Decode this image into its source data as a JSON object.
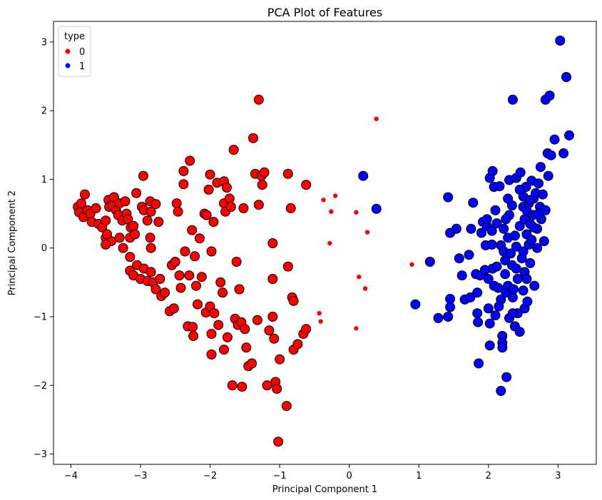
{
  "chart_data": {
    "type": "scatter",
    "title": "PCA Plot of Features",
    "xlabel": "Principal Component 1",
    "ylabel": "Principal Component 2",
    "xlim": [
      -4.25,
      3.55
    ],
    "ylim": [
      -3.15,
      3.3
    ],
    "xticks": [
      -4,
      -3,
      -2,
      -1,
      0,
      1,
      2,
      3
    ],
    "yticks": [
      -3,
      -2,
      -1,
      0,
      1,
      2,
      3
    ],
    "grid": false,
    "legend": {
      "title": "type",
      "placement": "top-left",
      "entries": [
        {
          "label": "0",
          "color": "#ff0000"
        },
        {
          "label": "1",
          "color": "#0000ff"
        }
      ]
    },
    "series": [
      {
        "label": "0",
        "color": "#ff0000",
        "marker": "large",
        "points": [
          [
            -3.9,
            0.6
          ],
          [
            -3.85,
            0.65
          ],
          [
            -3.8,
            0.78
          ],
          [
            -3.88,
            0.52
          ],
          [
            -3.82,
            0.45
          ],
          [
            -3.76,
            0.55
          ],
          [
            -3.72,
            0.5
          ],
          [
            -3.7,
            0.38
          ],
          [
            -3.64,
            0.58
          ],
          [
            -3.6,
            0.35
          ],
          [
            -3.55,
            0.3
          ],
          [
            -3.5,
            0.4
          ],
          [
            -3.46,
            0.7
          ],
          [
            -3.45,
            0.6
          ],
          [
            -3.4,
            0.62
          ],
          [
            -3.38,
            0.74
          ],
          [
            -3.35,
            0.55
          ],
          [
            -3.32,
            0.48
          ],
          [
            -3.3,
            0.65
          ],
          [
            -3.26,
            0.4
          ],
          [
            -3.22,
            0.68
          ],
          [
            -3.2,
            0.5
          ],
          [
            -3.18,
            0.42
          ],
          [
            -3.14,
            0.3
          ],
          [
            -3.1,
            0.32
          ],
          [
            -3.06,
            0.8
          ],
          [
            -3.5,
            0.15
          ],
          [
            -3.42,
            0.1
          ],
          [
            -3.3,
            0.15
          ],
          [
            -3.25,
            0.0
          ],
          [
            -3.5,
            0.05
          ],
          [
            -3.48,
            0.2
          ],
          [
            -3.15,
            0.15
          ],
          [
            -3.08,
            0.2
          ],
          [
            -2.98,
            0.6
          ],
          [
            -2.96,
            1.05
          ],
          [
            -2.95,
            0.55
          ],
          [
            -2.9,
            0.4
          ],
          [
            -2.86,
            0.68
          ],
          [
            -2.85,
            0.53
          ],
          [
            -2.78,
            0.64
          ],
          [
            -2.74,
            0.38
          ],
          [
            -2.86,
            0.15
          ],
          [
            -2.85,
            0.0
          ],
          [
            -3.15,
            -0.13
          ],
          [
            -3.15,
            -0.33
          ],
          [
            -3.05,
            -0.25
          ],
          [
            -3.1,
            -0.4
          ],
          [
            -3.0,
            -0.45
          ],
          [
            -2.95,
            -0.3
          ],
          [
            -2.9,
            -0.48
          ],
          [
            -2.85,
            -0.35
          ],
          [
            -2.82,
            -0.5
          ],
          [
            -2.78,
            -0.6
          ],
          [
            -2.72,
            -0.45
          ],
          [
            -2.7,
            -0.7
          ],
          [
            -2.65,
            -0.65
          ],
          [
            -2.58,
            -0.92
          ],
          [
            -2.52,
            -0.88
          ],
          [
            -2.55,
            -0.25
          ],
          [
            -2.5,
            -0.2
          ],
          [
            -2.48,
            0.65
          ],
          [
            -2.46,
            0.53
          ],
          [
            -2.44,
            -0.4
          ],
          [
            -2.42,
            -0.58
          ],
          [
            -2.38,
            1.12
          ],
          [
            -2.38,
            0.93
          ],
          [
            -2.36,
            -0.05
          ],
          [
            -2.32,
            -1.14
          ],
          [
            -2.3,
            -0.4
          ],
          [
            -2.29,
            1.27
          ],
          [
            -2.26,
            0.26
          ],
          [
            -2.25,
            -1.15
          ],
          [
            -2.24,
            -1.28
          ],
          [
            -2.22,
            -0.12
          ],
          [
            -2.2,
            -0.55
          ],
          [
            -2.18,
            -0.82
          ],
          [
            -2.15,
            0.14
          ],
          [
            -2.12,
            -0.42
          ],
          [
            -2.08,
            0.5
          ],
          [
            -2.06,
            -0.94
          ],
          [
            -2.05,
            0.48
          ],
          [
            -2.02,
            0.85
          ],
          [
            -2.0,
            1.07
          ],
          [
            -2.0,
            -0.85
          ],
          [
            -1.98,
            -0.05
          ],
          [
            -1.98,
            -1.25
          ],
          [
            -1.98,
            -1.55
          ],
          [
            -1.95,
            0.38
          ],
          [
            -1.94,
            -0.95
          ],
          [
            -1.9,
            0.95
          ],
          [
            -1.88,
            -1.12
          ],
          [
            -1.85,
            -0.5
          ],
          [
            -1.82,
            -0.65
          ],
          [
            -1.8,
            0.65
          ],
          [
            -1.8,
            0.97
          ],
          [
            -1.8,
            -1.48
          ],
          [
            -1.78,
            0.53
          ],
          [
            -1.76,
            0.88
          ],
          [
            -1.75,
            -1.3
          ],
          [
            -1.72,
            0.72
          ],
          [
            -1.7,
            0.6
          ],
          [
            -1.68,
            -2.0
          ],
          [
            -1.66,
            1.43
          ],
          [
            -1.64,
            -1.03
          ],
          [
            -1.62,
            -0.2
          ],
          [
            -1.6,
            -1.12
          ],
          [
            -1.58,
            -0.6
          ],
          [
            -1.55,
            -1.08
          ],
          [
            -1.54,
            -2.02
          ],
          [
            -1.52,
            0.58
          ],
          [
            -1.5,
            -1.18
          ],
          [
            -1.48,
            -1.45
          ],
          [
            -1.45,
            -1.72
          ],
          [
            -1.4,
            -1.68
          ],
          [
            -1.38,
            1.6
          ],
          [
            -1.35,
            1.08
          ],
          [
            -1.32,
            -1.05
          ],
          [
            -1.3,
            2.16
          ],
          [
            -1.3,
            0.63
          ],
          [
            -1.26,
            1.05
          ],
          [
            -1.25,
            0.92
          ],
          [
            -1.22,
            1.1
          ],
          [
            -1.18,
            -2.0
          ],
          [
            -1.15,
            -1.2
          ],
          [
            -1.1,
            -0.45
          ],
          [
            -1.1,
            0.07
          ],
          [
            -1.1,
            -1.0
          ],
          [
            -1.08,
            -1.32
          ],
          [
            -1.06,
            -1.95
          ],
          [
            -1.04,
            -2.05
          ],
          [
            -1.02,
            -2.82
          ],
          [
            -1.0,
            -1.62
          ],
          [
            -0.9,
            -2.3
          ],
          [
            -0.88,
            -0.27
          ],
          [
            -0.88,
            1.08
          ],
          [
            -0.84,
            0.58
          ],
          [
            -0.82,
            -0.72
          ],
          [
            -0.8,
            -0.77
          ],
          [
            -0.8,
            -1.48
          ],
          [
            -0.74,
            -1.4
          ],
          [
            -0.66,
            -1.25
          ],
          [
            -0.62,
            -1.18
          ],
          [
            -0.62,
            0.92
          ]
        ]
      },
      {
        "label": "0",
        "color": "#ff0000",
        "marker": "small",
        "points": [
          [
            0.39,
            1.88
          ],
          [
            -0.2,
            0.76
          ],
          [
            -0.37,
            0.7
          ],
          [
            -0.26,
            0.53
          ],
          [
            0.1,
            0.52
          ],
          [
            0.26,
            0.23
          ],
          [
            -0.28,
            0.07
          ],
          [
            0.9,
            -0.24
          ],
          [
            0.14,
            -0.42
          ],
          [
            0.23,
            -0.59
          ],
          [
            -0.43,
            -0.95
          ],
          [
            -0.41,
            -1.07
          ],
          [
            0.1,
            -1.17
          ]
        ]
      },
      {
        "label": "1",
        "color": "#0000ff",
        "marker": "large",
        "points": [
          [
            0.2,
            1.05
          ],
          [
            0.39,
            0.57
          ],
          [
            0.95,
            -0.82
          ],
          [
            1.16,
            -0.2
          ],
          [
            1.28,
            -1.02
          ],
          [
            1.42,
            -1.0
          ],
          [
            1.42,
            0.74
          ],
          [
            1.45,
            -0.74
          ],
          [
            1.45,
            -0.86
          ],
          [
            1.45,
            0.22
          ],
          [
            1.54,
            0.28
          ],
          [
            1.58,
            -0.15
          ],
          [
            1.62,
            -0.4
          ],
          [
            1.66,
            -0.75
          ],
          [
            1.72,
            -0.1
          ],
          [
            1.74,
            -0.72
          ],
          [
            1.75,
            0.28
          ],
          [
            1.78,
            0.66
          ],
          [
            1.82,
            -0.38
          ],
          [
            1.84,
            -0.65
          ],
          [
            1.84,
            -0.95
          ],
          [
            1.85,
            -1.08
          ],
          [
            1.86,
            -1.68
          ],
          [
            1.88,
            -0.4
          ],
          [
            1.9,
            0.22
          ],
          [
            1.92,
            0.38
          ],
          [
            1.95,
            -0.32
          ],
          [
            1.96,
            0.04
          ],
          [
            1.98,
            0.32
          ],
          [
            2.0,
            -0.45
          ],
          [
            2.0,
            -0.88
          ],
          [
            2.02,
            -1.1
          ],
          [
            2.02,
            -1.42
          ],
          [
            2.02,
            1.02
          ],
          [
            2.05,
            0.25
          ],
          [
            2.06,
            -0.3
          ],
          [
            2.06,
            1.12
          ],
          [
            2.08,
            0.89
          ],
          [
            2.08,
            -0.55
          ],
          [
            2.1,
            -0.98
          ],
          [
            2.12,
            0.36
          ],
          [
            2.12,
            -0.27
          ],
          [
            2.14,
            -0.58
          ],
          [
            2.16,
            0.9
          ],
          [
            2.18,
            -2.08
          ],
          [
            2.18,
            0.04
          ],
          [
            2.18,
            -0.75
          ],
          [
            2.2,
            -1.28
          ],
          [
            2.2,
            -1.38
          ],
          [
            2.2,
            -1.45
          ],
          [
            2.22,
            0.28
          ],
          [
            2.22,
            -0.05
          ],
          [
            2.24,
            -0.18
          ],
          [
            2.24,
            -0.38
          ],
          [
            2.25,
            -0.65
          ],
          [
            2.26,
            -1.88
          ],
          [
            2.28,
            0.15
          ],
          [
            2.28,
            -0.55
          ],
          [
            2.3,
            0.99
          ],
          [
            2.3,
            0.48
          ],
          [
            2.3,
            -1.02
          ],
          [
            2.32,
            -0.08
          ],
          [
            2.34,
            0.62
          ],
          [
            2.34,
            -0.25
          ],
          [
            2.35,
            -0.72
          ],
          [
            2.35,
            2.16
          ],
          [
            2.36,
            -0.6
          ],
          [
            2.38,
            0.18
          ],
          [
            2.38,
            -1.14
          ],
          [
            2.4,
            1.02
          ],
          [
            2.4,
            0.02
          ],
          [
            2.42,
            -0.45
          ],
          [
            2.42,
            -0.95
          ],
          [
            2.45,
            0.32
          ],
          [
            2.45,
            -1.22
          ],
          [
            2.46,
            1.1
          ],
          [
            2.48,
            -0.15
          ],
          [
            2.5,
            0.6
          ],
          [
            2.5,
            0.75
          ],
          [
            2.5,
            -0.05
          ],
          [
            2.5,
            -0.62
          ],
          [
            2.52,
            0.42
          ],
          [
            2.52,
            -0.35
          ],
          [
            2.52,
            -0.88
          ],
          [
            2.54,
            0.89
          ],
          [
            2.55,
            0.2
          ],
          [
            2.55,
            0.55
          ],
          [
            2.56,
            -0.78
          ],
          [
            2.58,
            0.65
          ],
          [
            2.58,
            0.05
          ],
          [
            2.6,
            0.35
          ],
          [
            2.6,
            -0.22
          ],
          [
            2.62,
            0.98
          ],
          [
            2.62,
            0.12
          ],
          [
            2.64,
            0.48
          ],
          [
            2.65,
            0.72
          ],
          [
            2.66,
            -0.55
          ],
          [
            2.68,
            0.8
          ],
          [
            2.7,
            0.28
          ],
          [
            2.7,
            0.0
          ],
          [
            2.72,
            0.94
          ],
          [
            2.74,
            0.6
          ],
          [
            2.75,
            1.18
          ],
          [
            2.76,
            0.42
          ],
          [
            2.78,
            0.78
          ],
          [
            2.8,
            0.1
          ],
          [
            2.82,
            2.16
          ],
          [
            2.85,
            1.38
          ],
          [
            2.86,
            1.05
          ],
          [
            2.88,
            2.22
          ],
          [
            2.9,
            1.35
          ],
          [
            2.95,
            1.58
          ],
          [
            3.03,
            3.02
          ],
          [
            3.08,
            1.38
          ],
          [
            3.12,
            2.49
          ],
          [
            3.16,
            1.64
          ],
          [
            2.82,
            0.55
          ],
          [
            2.65,
            0.3
          ],
          [
            2.45,
            0.85
          ],
          [
            2.28,
            0.72
          ],
          [
            2.1,
            0.55
          ],
          [
            1.98,
            0.42
          ],
          [
            2.15,
            -0.85
          ],
          [
            2.35,
            -0.95
          ],
          [
            2.55,
            -0.45
          ],
          [
            2.4,
            -0.3
          ],
          [
            2.05,
            0.05
          ],
          [
            2.25,
            0.42
          ],
          [
            2.6,
            0.7
          ],
          [
            2.72,
            0.5
          ]
        ]
      }
    ]
  }
}
